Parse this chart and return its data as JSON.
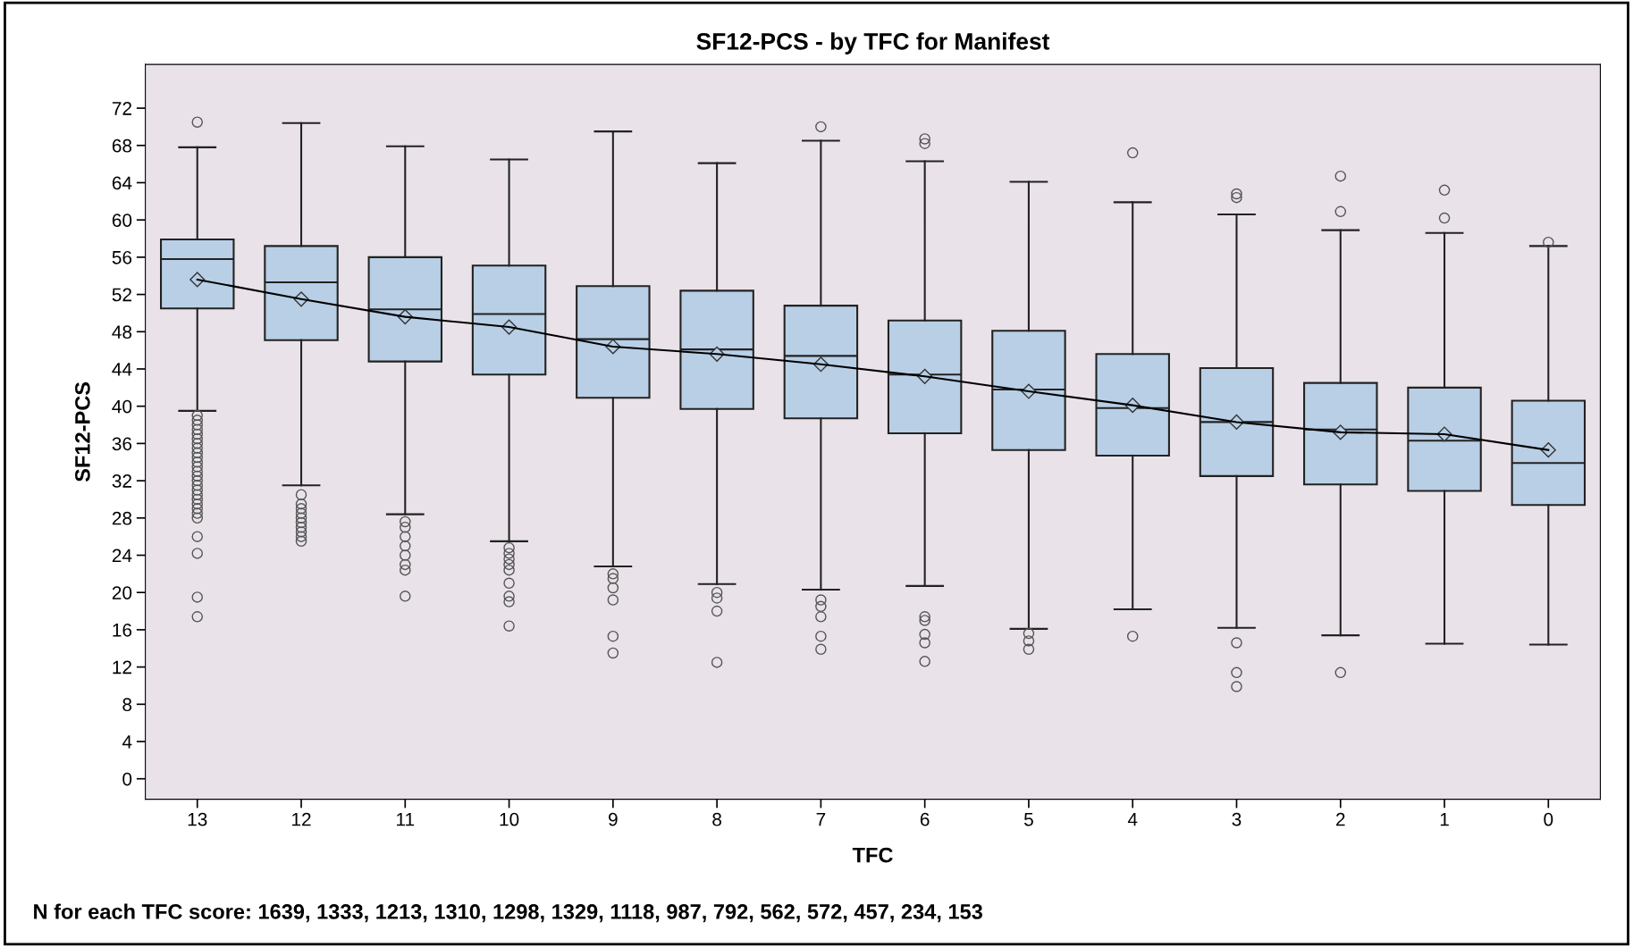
{
  "chart_data": {
    "type": "box",
    "title": "SF12-PCS - by TFC for Manifest",
    "xlabel": "TFC",
    "ylabel": "SF12-PCS",
    "categories": [
      "13",
      "12",
      "11",
      "10",
      "9",
      "8",
      "7",
      "6",
      "5",
      "4",
      "3",
      "2",
      "1",
      "0"
    ],
    "ylim": [
      -2.2,
      76.7
    ],
    "yticks": [
      0,
      4,
      8,
      12,
      16,
      20,
      24,
      28,
      32,
      36,
      40,
      44,
      48,
      52,
      56,
      60,
      64,
      68,
      72
    ],
    "grid": false,
    "legend": false,
    "color": "#b8cfe6",
    "boxes": [
      {
        "low": 39.5,
        "q1": 50.5,
        "median": 55.8,
        "q3": 57.9,
        "high": 67.8,
        "mean": 53.6,
        "outliers": [
          70.5,
          39,
          38.5,
          38,
          37.5,
          37,
          36.5,
          36,
          35.5,
          35,
          34.5,
          34,
          33.5,
          33,
          32.5,
          32,
          31.5,
          31,
          30.5,
          30,
          29.5,
          29,
          28.5,
          28,
          26,
          24.2,
          19.5,
          17.4
        ]
      },
      {
        "low": 31.5,
        "q1": 47.1,
        "median": 53.3,
        "q3": 57.2,
        "high": 70.4,
        "mean": 51.5,
        "outliers": [
          30.5,
          29.5,
          29,
          28.5,
          28,
          27.5,
          27,
          26.5,
          26,
          25.5
        ]
      },
      {
        "low": 28.4,
        "q1": 44.8,
        "median": 50.4,
        "q3": 56.0,
        "high": 67.9,
        "mean": 49.6,
        "outliers": [
          27.6,
          27,
          26,
          25,
          24,
          23,
          22.4,
          19.6
        ]
      },
      {
        "low": 25.5,
        "q1": 43.4,
        "median": 49.9,
        "q3": 55.1,
        "high": 66.5,
        "mean": 48.5,
        "outliers": [
          24.8,
          24.2,
          23.6,
          23,
          22.4,
          21,
          19.6,
          19,
          16.4
        ]
      },
      {
        "low": 22.8,
        "q1": 40.9,
        "median": 47.2,
        "q3": 52.9,
        "high": 69.5,
        "mean": 46.4,
        "outliers": [
          22,
          21.5,
          20.5,
          19.2,
          15.3,
          13.5
        ]
      },
      {
        "low": 20.9,
        "q1": 39.7,
        "median": 46.1,
        "q3": 52.4,
        "high": 66.1,
        "mean": 45.6,
        "outliers": [
          20,
          19.4,
          18,
          12.5
        ]
      },
      {
        "low": 20.3,
        "q1": 38.7,
        "median": 45.4,
        "q3": 50.8,
        "high": 68.5,
        "mean": 44.5,
        "outliers": [
          70,
          19.2,
          18.5,
          17.4,
          15.3,
          13.9
        ]
      },
      {
        "low": 20.7,
        "q1": 37.1,
        "median": 43.4,
        "q3": 49.2,
        "high": 66.3,
        "mean": 43.2,
        "outliers": [
          68.7,
          68.2,
          17.4,
          17,
          15.5,
          14.6,
          12.6
        ]
      },
      {
        "low": 16.1,
        "q1": 35.3,
        "median": 41.8,
        "q3": 48.1,
        "high": 64.1,
        "mean": 41.6,
        "outliers": [
          15.6,
          14.8,
          13.9
        ]
      },
      {
        "low": 18.2,
        "q1": 34.7,
        "median": 39.8,
        "q3": 45.6,
        "high": 61.9,
        "mean": 40.1,
        "outliers": [
          67.2,
          15.3
        ]
      },
      {
        "low": 16.2,
        "q1": 32.5,
        "median": 38.3,
        "q3": 44.1,
        "high": 60.6,
        "mean": 38.3,
        "outliers": [
          62.8,
          62.4,
          14.6,
          11.4,
          9.9
        ]
      },
      {
        "low": 15.4,
        "q1": 31.6,
        "median": 37.5,
        "q3": 42.5,
        "high": 58.9,
        "mean": 37.2,
        "outliers": [
          64.7,
          60.9,
          11.4
        ]
      },
      {
        "low": 14.5,
        "q1": 30.9,
        "median": 36.3,
        "q3": 42.0,
        "high": 58.6,
        "mean": 37.0,
        "outliers": [
          63.2,
          60.2
        ]
      },
      {
        "low": 14.4,
        "q1": 29.4,
        "median": 33.9,
        "q3": 40.6,
        "high": 57.2,
        "mean": 35.3,
        "outliers": [
          57.6
        ]
      }
    ],
    "series": [
      {
        "type": "line",
        "color": "#000000",
        "marker": "none",
        "line_style": "solid",
        "values": [
          53.6,
          51.5,
          49.6,
          48.5,
          46.4,
          45.6,
          44.5,
          43.2,
          41.6,
          40.1,
          38.3,
          37.2,
          37.0,
          35.3
        ]
      }
    ],
    "annotations": [
      "N for each TFC score: 1639, 1333, 1213, 1310, 1298, 1329, 1118, 987, 792, 562, 572, 457, 234, 153"
    ]
  }
}
